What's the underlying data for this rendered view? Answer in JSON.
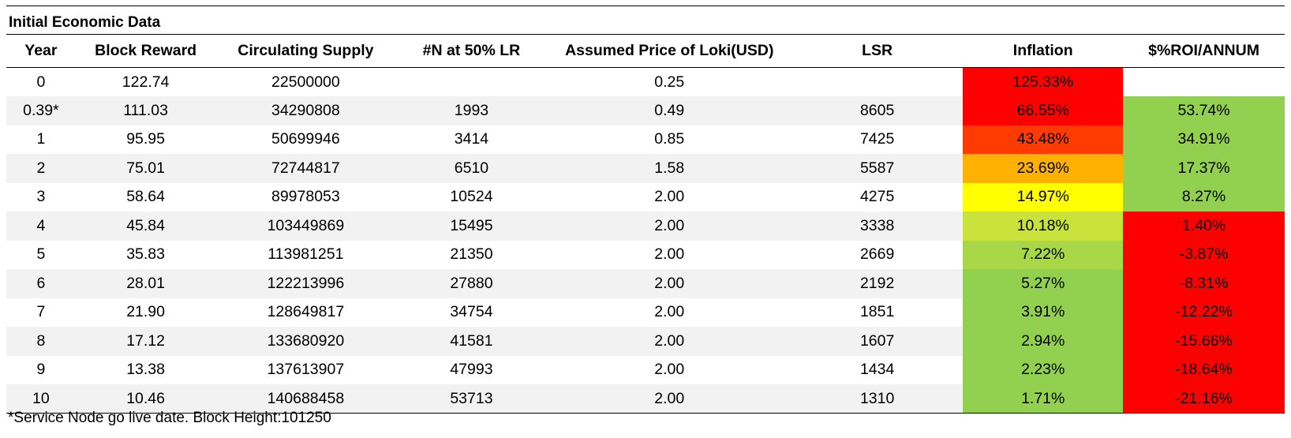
{
  "title": "Initial Economic Data",
  "columns": [
    "Year",
    "Block Reward",
    "Circulating Supply",
    "#N at 50% LR",
    "Assumed Price of Loki(USD)",
    "LSR",
    "Inflation",
    "$%ROI/ANNUM"
  ],
  "rows": [
    [
      "0",
      "122.74",
      "22500000",
      "",
      "0.25",
      "",
      "125.33%",
      ""
    ],
    [
      "0.39*",
      "111.03",
      "34290808",
      "1993",
      "0.49",
      "8605",
      "66.55%",
      "53.74%"
    ],
    [
      "1",
      "95.95",
      "50699946",
      "3414",
      "0.85",
      "7425",
      "43.48%",
      "34.91%"
    ],
    [
      "2",
      "75.01",
      "72744817",
      "6510",
      "1.58",
      "5587",
      "23.69%",
      "17.37%"
    ],
    [
      "3",
      "58.64",
      "89978053",
      "10524",
      "2.00",
      "4275",
      "14.97%",
      "8.27%"
    ],
    [
      "4",
      "45.84",
      "103449869",
      "15495",
      "2.00",
      "3338",
      "10.18%",
      "1.40%"
    ],
    [
      "5",
      "35.83",
      "113981251",
      "21350",
      "2.00",
      "2669",
      "7.22%",
      "-3.87%"
    ],
    [
      "6",
      "28.01",
      "122213996",
      "27880",
      "2.00",
      "2192",
      "5.27%",
      "-8.31%"
    ],
    [
      "7",
      "21.90",
      "128649817",
      "34754",
      "2.00",
      "1851",
      "3.91%",
      "-12.22%"
    ],
    [
      "8",
      "17.12",
      "133680920",
      "41581",
      "2.00",
      "1607",
      "2.94%",
      "-15.66%"
    ],
    [
      "9",
      "13.38",
      "137613907",
      "47993",
      "2.00",
      "1434",
      "2.23%",
      "-18.64%"
    ],
    [
      "10",
      "10.46",
      "140688458",
      "53713",
      "2.00",
      "1310",
      "1.71%",
      "-21.16%"
    ]
  ],
  "inflation_colors": [
    "#ff0000",
    "#ff0000",
    "#fe3b00",
    "#ffb100",
    "#ffff00",
    "#c9e33c",
    "#a8d848",
    "#92d050",
    "#92d050",
    "#92d050",
    "#92d050",
    "#92d050"
  ],
  "roi_colors": [
    "#ffffff",
    "#92d050",
    "#92d050",
    "#92d050",
    "#92d050",
    "#ff0000",
    "#ff0000",
    "#ff0000",
    "#ff0000",
    "#ff0000",
    "#ff0000",
    "#ff0000"
  ],
  "footnote": "*Service Node go live date. Block Height:101250"
}
